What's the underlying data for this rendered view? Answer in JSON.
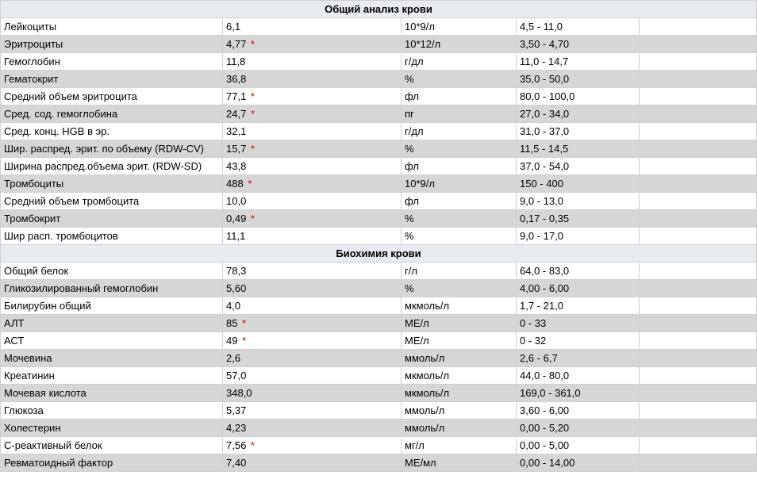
{
  "table": {
    "columns": [
      {
        "key": "name",
        "class": "col-name"
      },
      {
        "key": "value",
        "class": "col-value"
      },
      {
        "key": "unit",
        "class": "col-unit"
      },
      {
        "key": "range",
        "class": "col-range"
      },
      {
        "key": "empty",
        "class": "col-empty"
      }
    ],
    "colors": {
      "section_header_bg": "#e8ecf0",
      "row_even_bg": "#ffffff",
      "row_odd_bg": "#d6d6d6",
      "border": "#d0d0d0",
      "flag": "#cc0000",
      "text": "#000000"
    },
    "font_size": 13,
    "sections": [
      {
        "title": "Общий анализ крови",
        "rows": [
          {
            "name": "Лейкоциты",
            "value": "6,1",
            "flag": false,
            "unit": "10*9/л",
            "range": "4,5 - 11,0"
          },
          {
            "name": "Эритроциты",
            "value": "4,77",
            "flag": true,
            "unit": "10*12/л",
            "range": "3,50 - 4,70"
          },
          {
            "name": "Гемоглобин",
            "value": "11,8",
            "flag": false,
            "unit": "г/дл",
            "range": "11,0 - 14,7"
          },
          {
            "name": "Гематокрит",
            "value": "36,8",
            "flag": false,
            "unit": "%",
            "range": "35,0 - 50,0"
          },
          {
            "name": "Средний объем эритроцита",
            "value": "77,1",
            "flag": true,
            "unit": "фл",
            "range": "80,0 - 100,0"
          },
          {
            "name": "Сред. сод. гемоглобина",
            "value": "24,7",
            "flag": true,
            "unit": "пг",
            "range": "27,0 - 34,0"
          },
          {
            "name": "Сред. конц. HGB в эр.",
            "value": "32,1",
            "flag": false,
            "unit": "г/дл",
            "range": "31,0 - 37,0"
          },
          {
            "name": "Шир. распред. эрит. по объему (RDW-CV)",
            "value": "15,7",
            "flag": true,
            "unit": "%",
            "range": "11,5 - 14,5"
          },
          {
            "name": "Ширина распред.объема эрит. (RDW-SD)",
            "value": "43,8",
            "flag": false,
            "unit": "фл",
            "range": "37,0 - 54,0"
          },
          {
            "name": "Тромбоциты",
            "value": "488",
            "flag": true,
            "unit": "10*9/л",
            "range": "150 - 400"
          },
          {
            "name": "Средний объем тромбоцита",
            "value": "10,0",
            "flag": false,
            "unit": "фл",
            "range": "9,0 - 13,0"
          },
          {
            "name": "Тромбокрит",
            "value": "0,49",
            "flag": true,
            "unit": "%",
            "range": "0,17 - 0,35"
          },
          {
            "name": "Шир расп. тромбоцитов",
            "value": "11,1",
            "flag": false,
            "unit": "%",
            "range": "9,0 - 17,0"
          }
        ]
      },
      {
        "title": "Биохимия крови",
        "rows": [
          {
            "name": "Общий белок",
            "value": "78,3",
            "flag": false,
            "unit": "г/л",
            "range": "64,0 - 83,0"
          },
          {
            "name": "Гликозилированный гемоглобин",
            "value": "5,60",
            "flag": false,
            "unit": "%",
            "range": "4,00 - 6,00"
          },
          {
            "name": "Билирубин общий",
            "value": "4,0",
            "flag": false,
            "unit": "мкмоль/л",
            "range": "1,7 - 21,0"
          },
          {
            "name": "АЛТ",
            "value": "85",
            "flag": true,
            "unit": "МЕ/л",
            "range": "0 - 33"
          },
          {
            "name": "АСТ",
            "value": "49",
            "flag": true,
            "unit": "МЕ/л",
            "range": "0 - 32"
          },
          {
            "name": "Мочевина",
            "value": "2,6",
            "flag": false,
            "unit": "ммоль/л",
            "range": "2,6 - 6,7"
          },
          {
            "name": "Креатинин",
            "value": "57,0",
            "flag": false,
            "unit": "мкмоль/л",
            "range": "44,0 - 80,0"
          },
          {
            "name": "Мочевая кислота",
            "value": "348,0",
            "flag": false,
            "unit": "мкмоль/л",
            "range": "169,0 - 361,0"
          },
          {
            "name": "Глюкоза",
            "value": "5,37",
            "flag": false,
            "unit": "ммоль/л",
            "range": "3,60 - 6,00"
          },
          {
            "name": "Холестерин",
            "value": "4,23",
            "flag": false,
            "unit": "ммоль/л",
            "range": "0,00 - 5,20"
          },
          {
            "name": "С-реактивный белок",
            "value": "7,56",
            "flag": true,
            "unit": "мг/л",
            "range": "0,00 - 5,00"
          },
          {
            "name": "Ревматоидный фактор",
            "value": "7,40",
            "flag": false,
            "unit": "МЕ/мл",
            "range": "0,00 - 14,00"
          }
        ]
      }
    ]
  }
}
